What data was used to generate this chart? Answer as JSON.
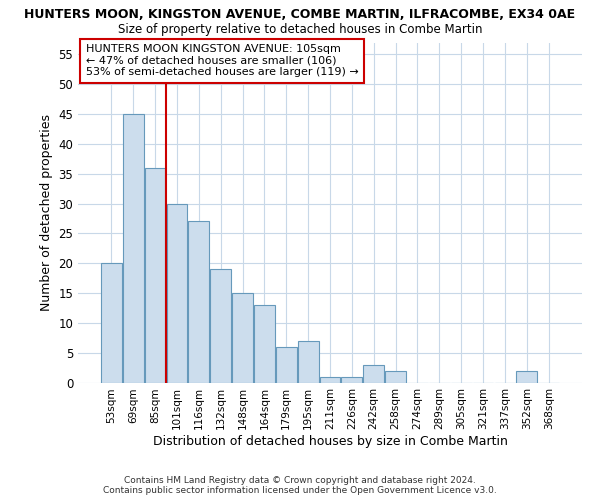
{
  "title_line1": "HUNTERS MOON, KINGSTON AVENUE, COMBE MARTIN, ILFRACOMBE, EX34 0AE",
  "title_line2": "Size of property relative to detached houses in Combe Martin",
  "xlabel": "Distribution of detached houses by size in Combe Martin",
  "ylabel": "Number of detached properties",
  "categories": [
    "53sqm",
    "69sqm",
    "85sqm",
    "101sqm",
    "116sqm",
    "132sqm",
    "148sqm",
    "164sqm",
    "179sqm",
    "195sqm",
    "211sqm",
    "226sqm",
    "242sqm",
    "258sqm",
    "274sqm",
    "289sqm",
    "305sqm",
    "321sqm",
    "337sqm",
    "352sqm",
    "368sqm"
  ],
  "values": [
    20,
    45,
    36,
    30,
    27,
    19,
    15,
    13,
    6,
    7,
    1,
    1,
    3,
    2,
    0,
    0,
    0,
    0,
    0,
    2,
    0
  ],
  "bar_color": "#ccdded",
  "bar_edge_color": "#6699bb",
  "vline_x": 3,
  "vline_color": "#cc0000",
  "annotation_text": "HUNTERS MOON KINGSTON AVENUE: 105sqm\n← 47% of detached houses are smaller (106)\n53% of semi-detached houses are larger (119) →",
  "annotation_box_color": "#ffffff",
  "annotation_box_edge": "#cc0000",
  "ylim": [
    0,
    57
  ],
  "yticks": [
    0,
    5,
    10,
    15,
    20,
    25,
    30,
    35,
    40,
    45,
    50,
    55
  ],
  "background_color": "#ffffff",
  "plot_bg_color": "#ffffff",
  "grid_color": "#c8d8e8",
  "footer_line1": "Contains HM Land Registry data © Crown copyright and database right 2024.",
  "footer_line2": "Contains public sector information licensed under the Open Government Licence v3.0."
}
